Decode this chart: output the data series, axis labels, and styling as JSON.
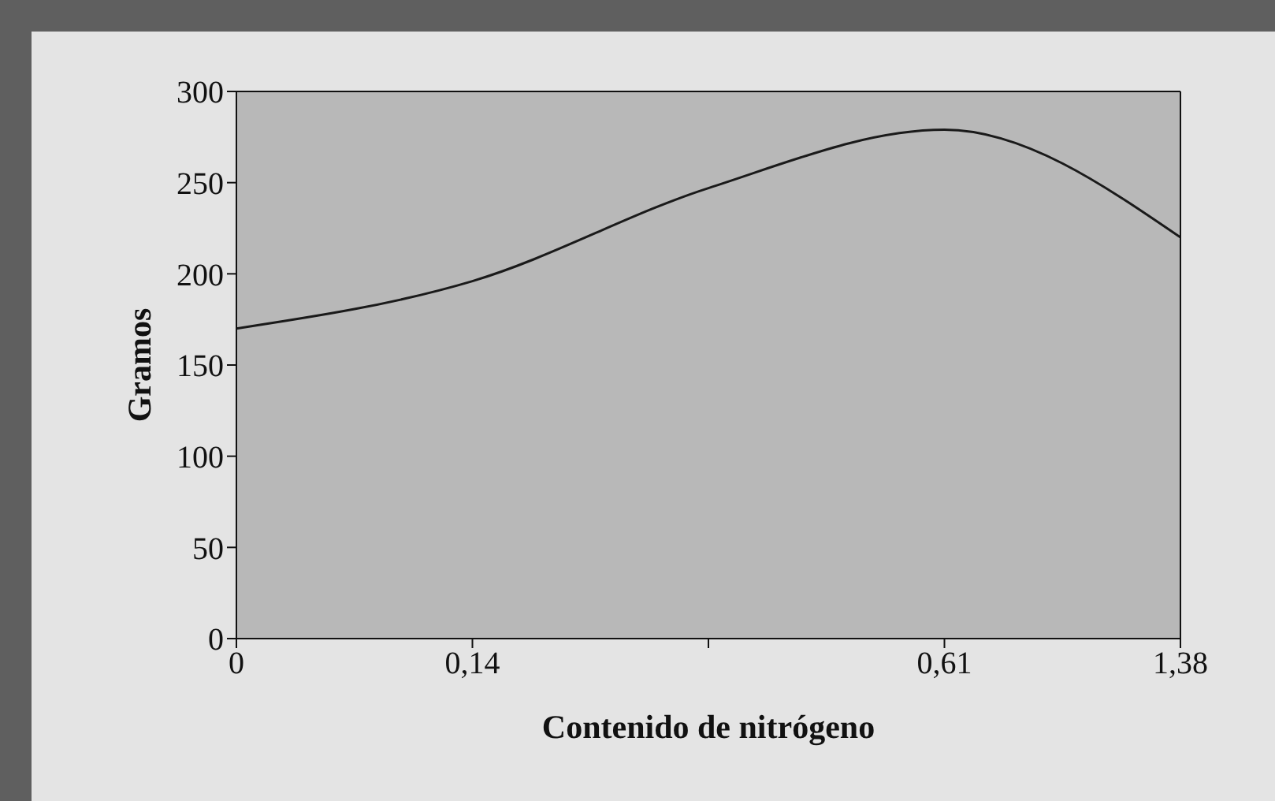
{
  "chart_data": {
    "type": "line",
    "xlabel": "Contenido de nitrógeno",
    "ylabel": "Gramos",
    "categories": [
      "0",
      "0,14",
      null,
      "0,61",
      "1,38"
    ],
    "series": [
      {
        "color": "#1a1a1a",
        "values": [
          170,
          196,
          247,
          279,
          220
        ]
      }
    ],
    "ylim": [
      0,
      300
    ],
    "yticks": [
      0,
      50,
      100,
      150,
      200,
      250,
      300
    ],
    "grid": false,
    "marker": "none",
    "line_style": "solid"
  }
}
